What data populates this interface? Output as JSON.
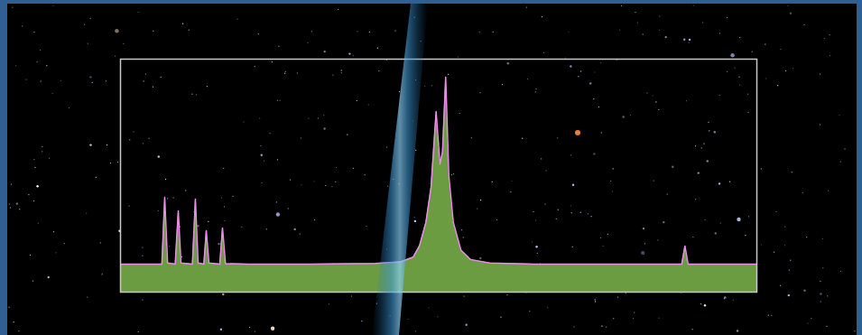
{
  "chart_data": {
    "type": "area",
    "x": [
      0,
      6.5,
      6.95,
      7.4,
      8.6,
      9.08,
      9.5,
      11.3,
      11.77,
      12.2,
      13.1,
      13.48,
      13.9,
      15.6,
      16.03,
      16.5,
      20,
      30,
      40,
      44,
      46,
      47,
      48,
      48.8,
      49.6,
      50.2,
      50.6,
      51.1,
      51.6,
      52.3,
      53.5,
      55,
      58,
      65,
      75,
      88.2,
      88.7,
      89.2,
      95,
      100
    ],
    "values": [
      12,
      12,
      40.7,
      12.5,
      12,
      34.9,
      12.5,
      12,
      39.9,
      12.5,
      12,
      26.4,
      12.5,
      12,
      27.5,
      12.2,
      12,
      12,
      12.3,
      13,
      15,
      20,
      30,
      45,
      77.5,
      55,
      60,
      92.2,
      50,
      30,
      18,
      14,
      12.5,
      12,
      12,
      12,
      19.8,
      12,
      12,
      12
    ],
    "color": "#6c9c42",
    "xlim": [
      0,
      100
    ],
    "ylim": [
      0,
      100
    ],
    "xticks": [],
    "yticks": [],
    "grid": false,
    "tick_labels": false
  }
}
